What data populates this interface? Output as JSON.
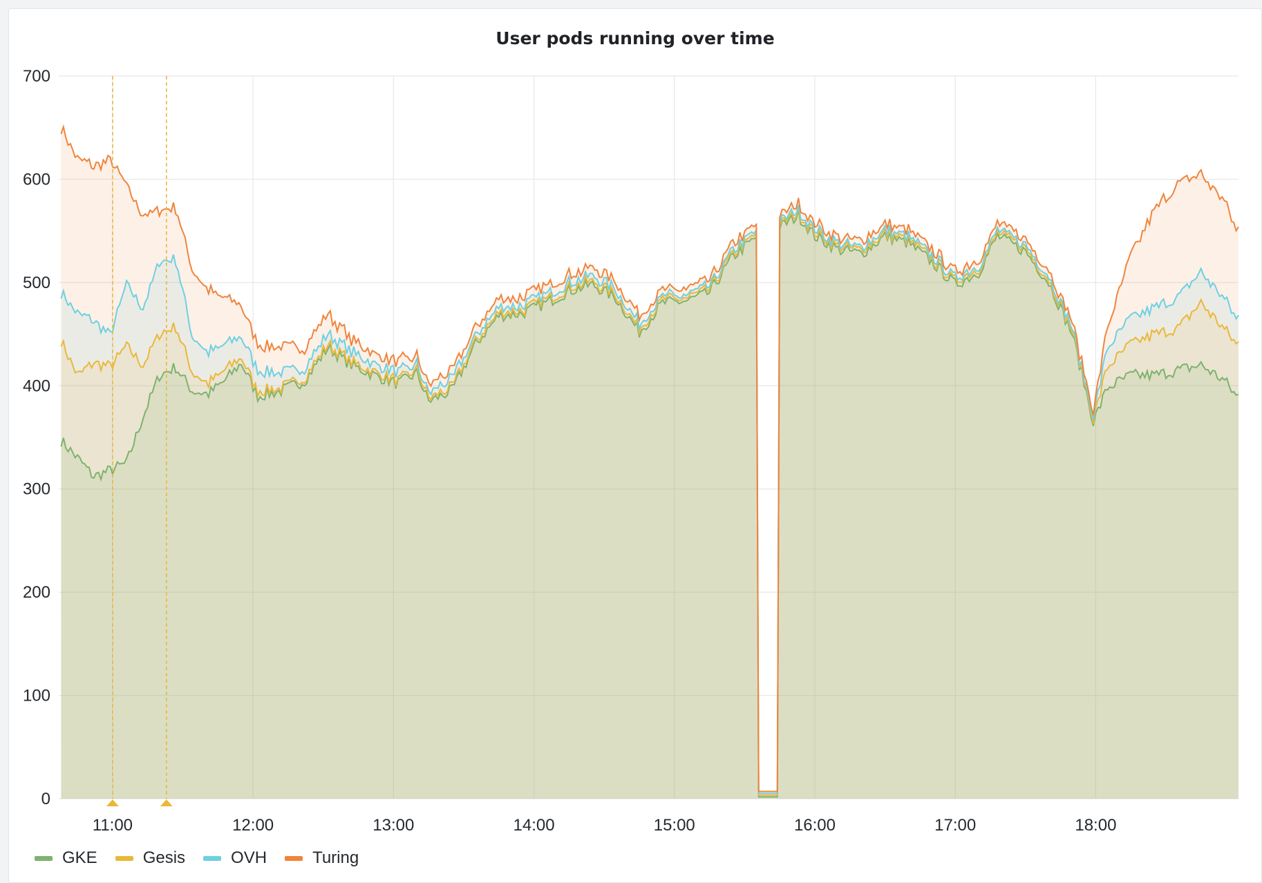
{
  "chart_data": {
    "type": "area",
    "stacked": true,
    "title": "User pods running over time",
    "xlabel": "",
    "ylabel": "",
    "ylim": [
      0,
      700
    ],
    "yticks": [
      0,
      100,
      200,
      300,
      400,
      500,
      600,
      700
    ],
    "xticks": [
      "11:00",
      "12:00",
      "13:00",
      "14:00",
      "15:00",
      "16:00",
      "17:00",
      "18:00"
    ],
    "grid": true,
    "legend_position": "bottom-left",
    "annotations": [
      {
        "time": "11:00",
        "marker": "triangle"
      },
      {
        "time": "11:23",
        "marker": "triangle"
      }
    ],
    "x": [
      "10:38",
      "10:45",
      "10:52",
      "10:59",
      "11:06",
      "11:13",
      "11:20",
      "11:27",
      "11:34",
      "11:41",
      "11:48",
      "11:55",
      "12:02",
      "12:12",
      "12:22",
      "12:32",
      "12:42",
      "12:52",
      "13:02",
      "13:10",
      "13:15",
      "13:25",
      "13:35",
      "13:45",
      "13:55",
      "14:05",
      "14:15",
      "14:25",
      "14:35",
      "14:45",
      "14:55",
      "15:05",
      "15:15",
      "15:25",
      "15:33",
      "15:39",
      "15:46",
      "15:53",
      "16:00",
      "16:10",
      "16:20",
      "16:30",
      "16:40",
      "16:50",
      "17:00",
      "17:10",
      "17:18",
      "17:30",
      "17:40",
      "17:50",
      "17:59",
      "18:05",
      "18:15",
      "18:25",
      "18:35",
      "18:45",
      "18:55",
      "19:00"
    ],
    "series": [
      {
        "name": "GKE",
        "color": "#7eb26d",
        "values": [
          347,
          330,
          312,
          318,
          325,
          370,
          410,
          418,
          395,
          392,
          405,
          422,
          390,
          395,
          405,
          437,
          420,
          410,
          402,
          412,
          385,
          395,
          440,
          468,
          470,
          480,
          492,
          498,
          485,
          452,
          480,
          482,
          490,
          525,
          540,
          552,
          555,
          565,
          545,
          532,
          528,
          545,
          538,
          520,
          498,
          510,
          545,
          530,
          500,
          450,
          365,
          398,
          410,
          410,
          415,
          420,
          405,
          390
        ]
      },
      {
        "name": "Gesis",
        "color": "#eab839",
        "values": [
          97,
          80,
          110,
          100,
          113,
          50,
          40,
          40,
          18,
          10,
          10,
          5,
          5,
          3,
          3,
          3,
          3,
          3,
          3,
          3,
          3,
          3,
          3,
          3,
          3,
          3,
          3,
          3,
          3,
          3,
          3,
          3,
          3,
          3,
          3,
          3,
          3,
          3,
          3,
          3,
          3,
          3,
          3,
          3,
          3,
          3,
          3,
          3,
          3,
          3,
          3,
          20,
          30,
          40,
          40,
          60,
          50,
          50
        ]
      },
      {
        "name": "OVH",
        "color": "#6ed0e0",
        "values": [
          47,
          60,
          40,
          30,
          60,
          55,
          70,
          65,
          35,
          30,
          25,
          20,
          20,
          15,
          10,
          10,
          10,
          8,
          8,
          5,
          5,
          8,
          5,
          5,
          5,
          5,
          5,
          5,
          5,
          5,
          3,
          3,
          3,
          3,
          3,
          3,
          3,
          3,
          3,
          3,
          3,
          3,
          3,
          3,
          3,
          3,
          3,
          3,
          3,
          3,
          3,
          18,
          25,
          25,
          30,
          30,
          30,
          25
        ]
      },
      {
        "name": "Turing",
        "color": "#ef843c",
        "values": [
          160,
          150,
          150,
          170,
          95,
          90,
          50,
          50,
          65,
          60,
          45,
          30,
          25,
          25,
          20,
          20,
          12,
          10,
          10,
          8,
          8,
          8,
          8,
          8,
          8,
          8,
          8,
          8,
          8,
          8,
          6,
          6,
          6,
          6,
          6,
          6,
          6,
          6,
          6,
          6,
          6,
          6,
          6,
          6,
          6,
          6,
          6,
          6,
          6,
          6,
          4,
          20,
          60,
          95,
          110,
          95,
          95,
          85
        ]
      }
    ],
    "dropout": {
      "from": "15:36",
      "to": "15:44",
      "total": 7
    }
  }
}
